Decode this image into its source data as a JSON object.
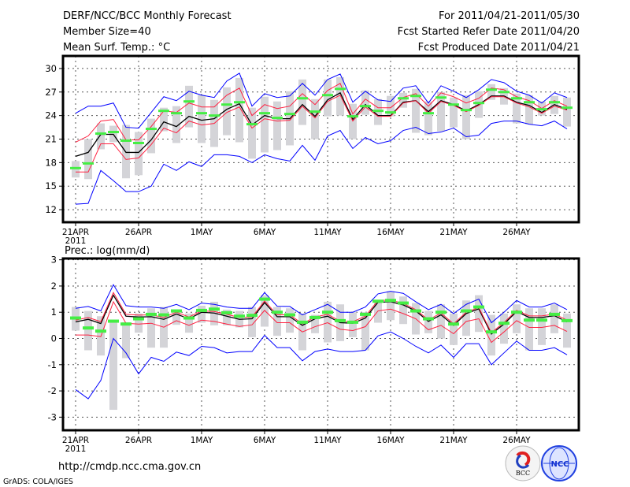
{
  "header": {
    "title": "DERF/NCC/BCC Monthly Forecast",
    "member_size": "Member Size=40",
    "variable": "Mean Surf. Temp.: °C",
    "period": "For 2011/04/21-2011/05/30",
    "started": "Fcst Started Refer Date 2011/04/20",
    "produced": "Fcst Produced Date 2011/04/21"
  },
  "footer": {
    "url": "http://cmdp.ncc.cma.gov.cn",
    "credit": "GrADS: COLA/IGES",
    "logo_bcc": "BCC",
    "logo_ncc": "NCC"
  },
  "colors": {
    "mean": "#000000",
    "spread": "#ff2040",
    "extreme": "#0000ff",
    "obs": "#44ee44",
    "range": "#d4d4d8"
  },
  "chart_data": [
    {
      "type": "line",
      "title": "Mean Surf. Temp.: °C",
      "x_tick_labels": [
        "21APR",
        "26APR",
        "1MAY",
        "6MAY",
        "11MAY",
        "16MAY",
        "21MAY",
        "26MAY"
      ],
      "x_year_label": "2011",
      "y_ticks": [
        12,
        15,
        18,
        21,
        24,
        27,
        30
      ],
      "ylim": [
        10.4,
        31.6
      ],
      "grid": true,
      "days": 40,
      "series": [
        {
          "name": "ensemble-mean",
          "color": "mean",
          "values": [
            18.8,
            19.3,
            21.6,
            21.6,
            19.3,
            19.3,
            20.9,
            23.2,
            22.6,
            23.9,
            23.4,
            23.6,
            24.8,
            25.5,
            22.8,
            24.0,
            23.6,
            23.6,
            25.4,
            23.9,
            26.0,
            26.9,
            23.5,
            25.4,
            24.0,
            24.0,
            25.7,
            25.9,
            24.5,
            25.9,
            25.4,
            24.6,
            25.4,
            26.5,
            26.5,
            25.7,
            25.3,
            24.4,
            25.4,
            24.8
          ]
        },
        {
          "name": "upper-spread",
          "color": "spread",
          "values": [
            20.6,
            21.4,
            23.3,
            23.5,
            20.9,
            20.9,
            22.6,
            24.6,
            24.4,
            25.6,
            25.1,
            25.1,
            26.6,
            27.5,
            24.0,
            25.4,
            24.9,
            25.2,
            26.8,
            25.4,
            27.2,
            28.1,
            24.2,
            26.1,
            25.0,
            25.0,
            26.3,
            26.8,
            25.2,
            26.9,
            26.4,
            25.6,
            26.2,
            27.5,
            27.3,
            26.4,
            25.9,
            24.9,
            25.9,
            25.2
          ]
        },
        {
          "name": "lower-spread",
          "color": "spread",
          "values": [
            16.8,
            16.8,
            20.4,
            20.4,
            18.4,
            18.6,
            20.3,
            22.4,
            21.8,
            23.3,
            22.8,
            23.0,
            24.4,
            25.1,
            22.4,
            23.6,
            23.3,
            23.4,
            25.2,
            23.7,
            25.8,
            26.6,
            23.3,
            25.1,
            23.9,
            23.9,
            25.6,
            25.9,
            24.3,
            25.8,
            25.3,
            24.5,
            25.3,
            26.4,
            26.4,
            25.6,
            25.1,
            24.3,
            25.2,
            24.7
          ]
        },
        {
          "name": "maximum",
          "color": "extreme",
          "values": [
            24.3,
            25.2,
            25.2,
            25.6,
            22.5,
            22.4,
            24.4,
            26.4,
            25.9,
            27.1,
            26.6,
            26.3,
            28.4,
            29.4,
            25.2,
            26.8,
            26.3,
            26.5,
            28.1,
            26.6,
            28.6,
            29.3,
            25.7,
            27.1,
            26.0,
            25.8,
            27.5,
            27.8,
            25.6,
            27.8,
            27.1,
            26.3,
            27.3,
            28.6,
            28.2,
            27.1,
            26.6,
            25.6,
            26.9,
            26.3
          ]
        },
        {
          "name": "minimum",
          "color": "extreme",
          "values": [
            12.7,
            12.8,
            17.0,
            15.7,
            14.3,
            14.3,
            15.0,
            17.8,
            17.0,
            18.1,
            17.5,
            19.0,
            19.0,
            18.8,
            18.0,
            19.0,
            18.5,
            18.2,
            20.2,
            18.3,
            21.4,
            22.1,
            19.8,
            21.2,
            20.4,
            20.8,
            22.1,
            22.5,
            21.7,
            21.9,
            22.4,
            21.3,
            21.5,
            23.0,
            23.3,
            23.3,
            22.9,
            22.7,
            23.3,
            22.3
          ]
        },
        {
          "name": "observed",
          "color": "obs",
          "values": [
            17.3,
            17.9,
            21.7,
            21.9,
            20.8,
            20.5,
            22.3,
            24.6,
            24.3,
            25.8,
            24.3,
            24.0,
            25.4,
            25.7,
            22.9,
            24.3,
            23.7,
            24.2,
            26.2,
            24.5,
            26.6,
            27.4,
            23.9,
            25.2,
            24.6,
            24.4,
            26.2,
            26.5,
            24.3,
            26.3,
            25.4,
            24.7,
            25.6,
            27.3,
            27.0,
            26.2,
            25.7,
            24.8,
            25.7,
            25.0
          ]
        }
      ],
      "range_low": [
        16.1,
        15.9,
        19.7,
        20.6,
        16.0,
        16.4,
        19.2,
        22.0,
        20.5,
        22.5,
        20.5,
        20.0,
        21.5,
        20.6,
        18.5,
        19.3,
        19.6,
        20.2,
        22.8,
        21.0,
        23.9,
        24.0,
        21.0,
        24.1,
        22.8,
        23.9,
        25.0,
        21.8,
        21.5,
        22.0,
        22.5,
        21.0,
        23.7,
        26.0,
        25.4,
        23.0,
        22.9,
        24.0,
        24.2,
        22.6
      ],
      "range_high": [
        18.2,
        21.0,
        23.0,
        22.7,
        22.8,
        21.9,
        23.6,
        25.0,
        25.2,
        27.8,
        26.6,
        26.0,
        27.6,
        28.8,
        25.0,
        26.4,
        25.8,
        27.1,
        28.6,
        26.1,
        28.6,
        28.9,
        25.5,
        27.2,
        26.1,
        26.5,
        26.9,
        27.4,
        25.8,
        27.0,
        26.3,
        26.6,
        27.1,
        28.0,
        27.5,
        26.8,
        26.6,
        25.8,
        26.5,
        26.3
      ]
    },
    {
      "type": "line",
      "title": "Prec.: log(mm/d)",
      "x_tick_labels": [
        "21APR",
        "26APR",
        "1MAY",
        "6MAY",
        "11MAY",
        "16MAY",
        "21MAY",
        "26MAY"
      ],
      "x_year_label": "2011",
      "y_ticks": [
        -3,
        -2,
        -1,
        0,
        1,
        2,
        3
      ],
      "ylim": [
        -3.5,
        3.05
      ],
      "grid": true,
      "days": 40,
      "series": [
        {
          "name": "ensemble-mean",
          "color": "mean",
          "values": [
            0.63,
            0.73,
            0.57,
            1.65,
            0.85,
            0.82,
            0.83,
            0.73,
            0.93,
            0.75,
            1.0,
            0.97,
            0.85,
            0.73,
            0.75,
            1.37,
            0.83,
            0.83,
            0.5,
            0.75,
            0.85,
            0.6,
            0.58,
            0.78,
            1.38,
            1.4,
            1.28,
            1.05,
            0.65,
            0.9,
            0.5,
            0.95,
            1.13,
            0.17,
            0.55,
            1.03,
            0.8,
            0.8,
            0.87,
            0.63
          ]
        },
        {
          "name": "upper-spread",
          "color": "spread",
          "values": [
            0.7,
            0.8,
            0.64,
            1.75,
            0.92,
            0.89,
            0.9,
            0.8,
            1.0,
            0.82,
            1.05,
            1.03,
            0.92,
            0.8,
            0.82,
            1.43,
            0.9,
            0.9,
            0.56,
            0.82,
            0.92,
            0.66,
            0.64,
            0.85,
            1.45,
            1.46,
            1.34,
            1.1,
            0.71,
            0.97,
            0.56,
            1.0,
            1.18,
            0.22,
            0.61,
            1.07,
            0.86,
            0.86,
            0.93,
            0.7
          ]
        },
        {
          "name": "lower-spread",
          "color": "spread",
          "values": [
            0.13,
            0.13,
            0.07,
            1.4,
            0.58,
            0.55,
            0.58,
            0.43,
            0.68,
            0.5,
            0.7,
            0.65,
            0.55,
            0.46,
            0.52,
            1.07,
            0.6,
            0.6,
            0.25,
            0.45,
            0.6,
            0.35,
            0.3,
            0.45,
            1.05,
            1.12,
            0.95,
            0.75,
            0.33,
            0.5,
            0.18,
            0.65,
            0.75,
            -0.15,
            0.25,
            0.68,
            0.42,
            0.42,
            0.5,
            0.27
          ]
        },
        {
          "name": "maximum",
          "color": "extreme",
          "values": [
            1.15,
            1.22,
            1.05,
            2.05,
            1.25,
            1.2,
            1.2,
            1.15,
            1.3,
            1.1,
            1.35,
            1.3,
            1.2,
            1.15,
            1.15,
            1.75,
            1.23,
            1.22,
            0.9,
            1.1,
            1.3,
            1.0,
            1.0,
            1.2,
            1.7,
            1.8,
            1.72,
            1.4,
            1.1,
            1.3,
            0.95,
            1.3,
            1.5,
            0.6,
            1.0,
            1.45,
            1.2,
            1.2,
            1.35,
            1.1
          ]
        },
        {
          "name": "minimum",
          "color": "extreme",
          "values": [
            -1.95,
            -2.3,
            -1.6,
            0.0,
            -0.55,
            -1.35,
            -0.72,
            -0.87,
            -0.52,
            -0.65,
            -0.3,
            -0.35,
            -0.55,
            -0.5,
            -0.5,
            0.12,
            -0.35,
            -0.35,
            -0.85,
            -0.5,
            -0.4,
            -0.5,
            -0.5,
            -0.45,
            0.1,
            0.25,
            0.0,
            -0.3,
            -0.55,
            -0.25,
            -0.72,
            -0.2,
            -0.2,
            -1.0,
            -0.55,
            -0.1,
            -0.45,
            -0.45,
            -0.35,
            -0.62
          ]
        },
        {
          "name": "observed",
          "color": "obs",
          "values": [
            0.78,
            0.4,
            0.28,
            0.66,
            0.55,
            0.75,
            0.92,
            0.9,
            1.05,
            0.78,
            1.07,
            1.12,
            0.98,
            0.85,
            0.88,
            1.5,
            1.0,
            0.9,
            0.62,
            0.8,
            1.0,
            0.68,
            0.62,
            0.92,
            1.42,
            1.45,
            1.35,
            1.05,
            0.75,
            1.0,
            0.55,
            1.05,
            1.2,
            0.25,
            0.58,
            1.0,
            0.7,
            0.7,
            0.92,
            0.68
          ]
        }
      ],
      "range_low": [
        0.3,
        -0.45,
        -0.65,
        -2.72,
        -0.75,
        0.22,
        -0.35,
        -0.35,
        0.52,
        0.22,
        0.6,
        0.5,
        0.5,
        0.42,
        0.05,
        0.45,
        0.1,
        0.22,
        -0.45,
        0.2,
        -0.15,
        -0.1,
        0.05,
        -0.45,
        0.6,
        0.7,
        0.55,
        0.15,
        0.2,
        0.0,
        -0.25,
        0.1,
        0.25,
        -0.65,
        -0.2,
        0.2,
        -0.45,
        -0.25,
        0.2,
        -0.35
      ],
      "range_high": [
        1.2,
        1.05,
        0.85,
        0.7,
        0.62,
        0.95,
        1.15,
        1.2,
        1.05,
        0.95,
        1.25,
        1.4,
        1.1,
        1.05,
        1.2,
        1.65,
        1.2,
        1.15,
        0.95,
        0.9,
        1.4,
        1.3,
        1.0,
        1.0,
        1.45,
        1.8,
        1.6,
        1.35,
        1.05,
        1.3,
        0.95,
        1.45,
        1.65,
        0.9,
        0.95,
        1.3,
        1.15,
        1.15,
        1.3,
        0.95
      ]
    }
  ]
}
